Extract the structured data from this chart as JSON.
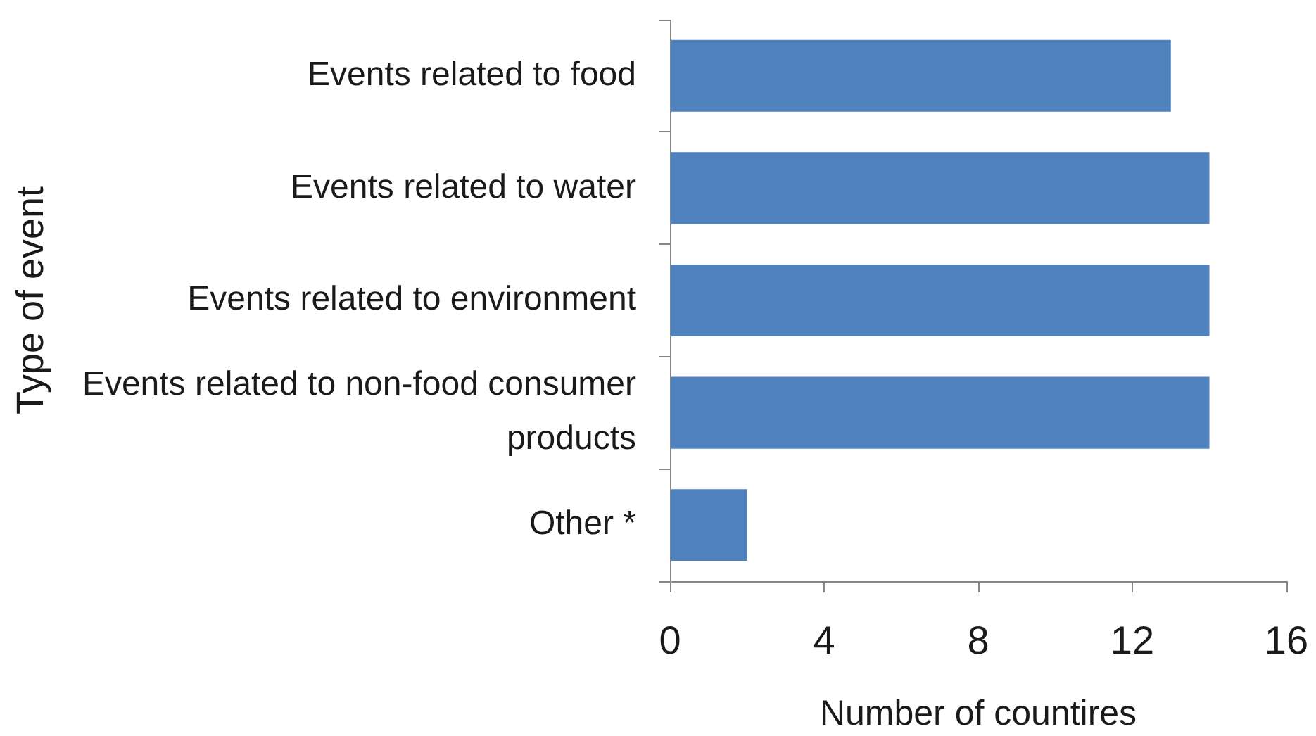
{
  "chart_data": {
    "type": "bar",
    "orientation": "horizontal",
    "categories": [
      "Events related to food",
      "Events related to water",
      "Events related to environment",
      "Events related to non-food consumer products",
      "Other *"
    ],
    "values": [
      13,
      14,
      14,
      14,
      2
    ],
    "color": "#4f81bd",
    "xlabel": "Number of countires",
    "ylabel": "Type of event",
    "xlim": [
      0,
      16
    ],
    "xticks": [
      0,
      4,
      8,
      12,
      16
    ]
  }
}
